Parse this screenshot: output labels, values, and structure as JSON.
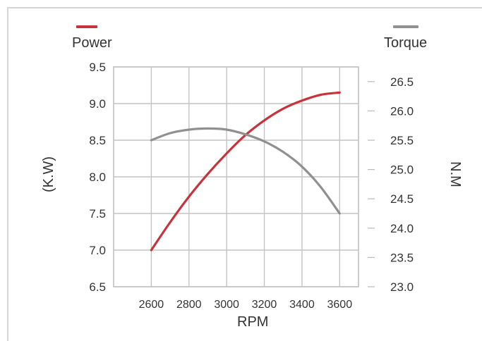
{
  "legend": {
    "power": {
      "label": "Power",
      "color": "#c8323a"
    },
    "torque": {
      "label": "Torque",
      "color": "#909090"
    }
  },
  "chart_data": {
    "type": "line",
    "title": "",
    "xlabel": "RPM",
    "ylabel_left": "(K.W)",
    "ylabel_right": "N.M",
    "x_ticks": [
      2600,
      2800,
      3000,
      3200,
      3400,
      3600
    ],
    "y_left_ticks": [
      "6.5",
      "7.0",
      "7.5",
      "8.0",
      "8.5",
      "9.0",
      "9.5"
    ],
    "y_right_ticks": [
      "23.0",
      "23.5",
      "24.0",
      "24.5",
      "25.0",
      "25.5",
      "26.0",
      "26.5"
    ],
    "xlim": [
      2400,
      3700
    ],
    "ylim_left": [
      6.5,
      9.5
    ],
    "ylim_right": [
      23.0,
      26.75
    ],
    "grid": true,
    "legend_position": "top",
    "series": [
      {
        "name": "Power",
        "axis": "left",
        "color": "#c8323a",
        "x": [
          2600,
          2700,
          2800,
          2900,
          3000,
          3100,
          3200,
          3300,
          3400,
          3500,
          3600
        ],
        "y": [
          7.0,
          7.38,
          7.73,
          8.04,
          8.32,
          8.57,
          8.77,
          8.93,
          9.04,
          9.12,
          9.15
        ]
      },
      {
        "name": "Torque",
        "axis": "right",
        "color": "#909090",
        "x": [
          2600,
          2700,
          2800,
          2900,
          3000,
          3100,
          3200,
          3300,
          3400,
          3500,
          3600
        ],
        "y": [
          25.5,
          25.62,
          25.68,
          25.7,
          25.68,
          25.6,
          25.48,
          25.3,
          25.05,
          24.7,
          24.25
        ]
      }
    ]
  }
}
